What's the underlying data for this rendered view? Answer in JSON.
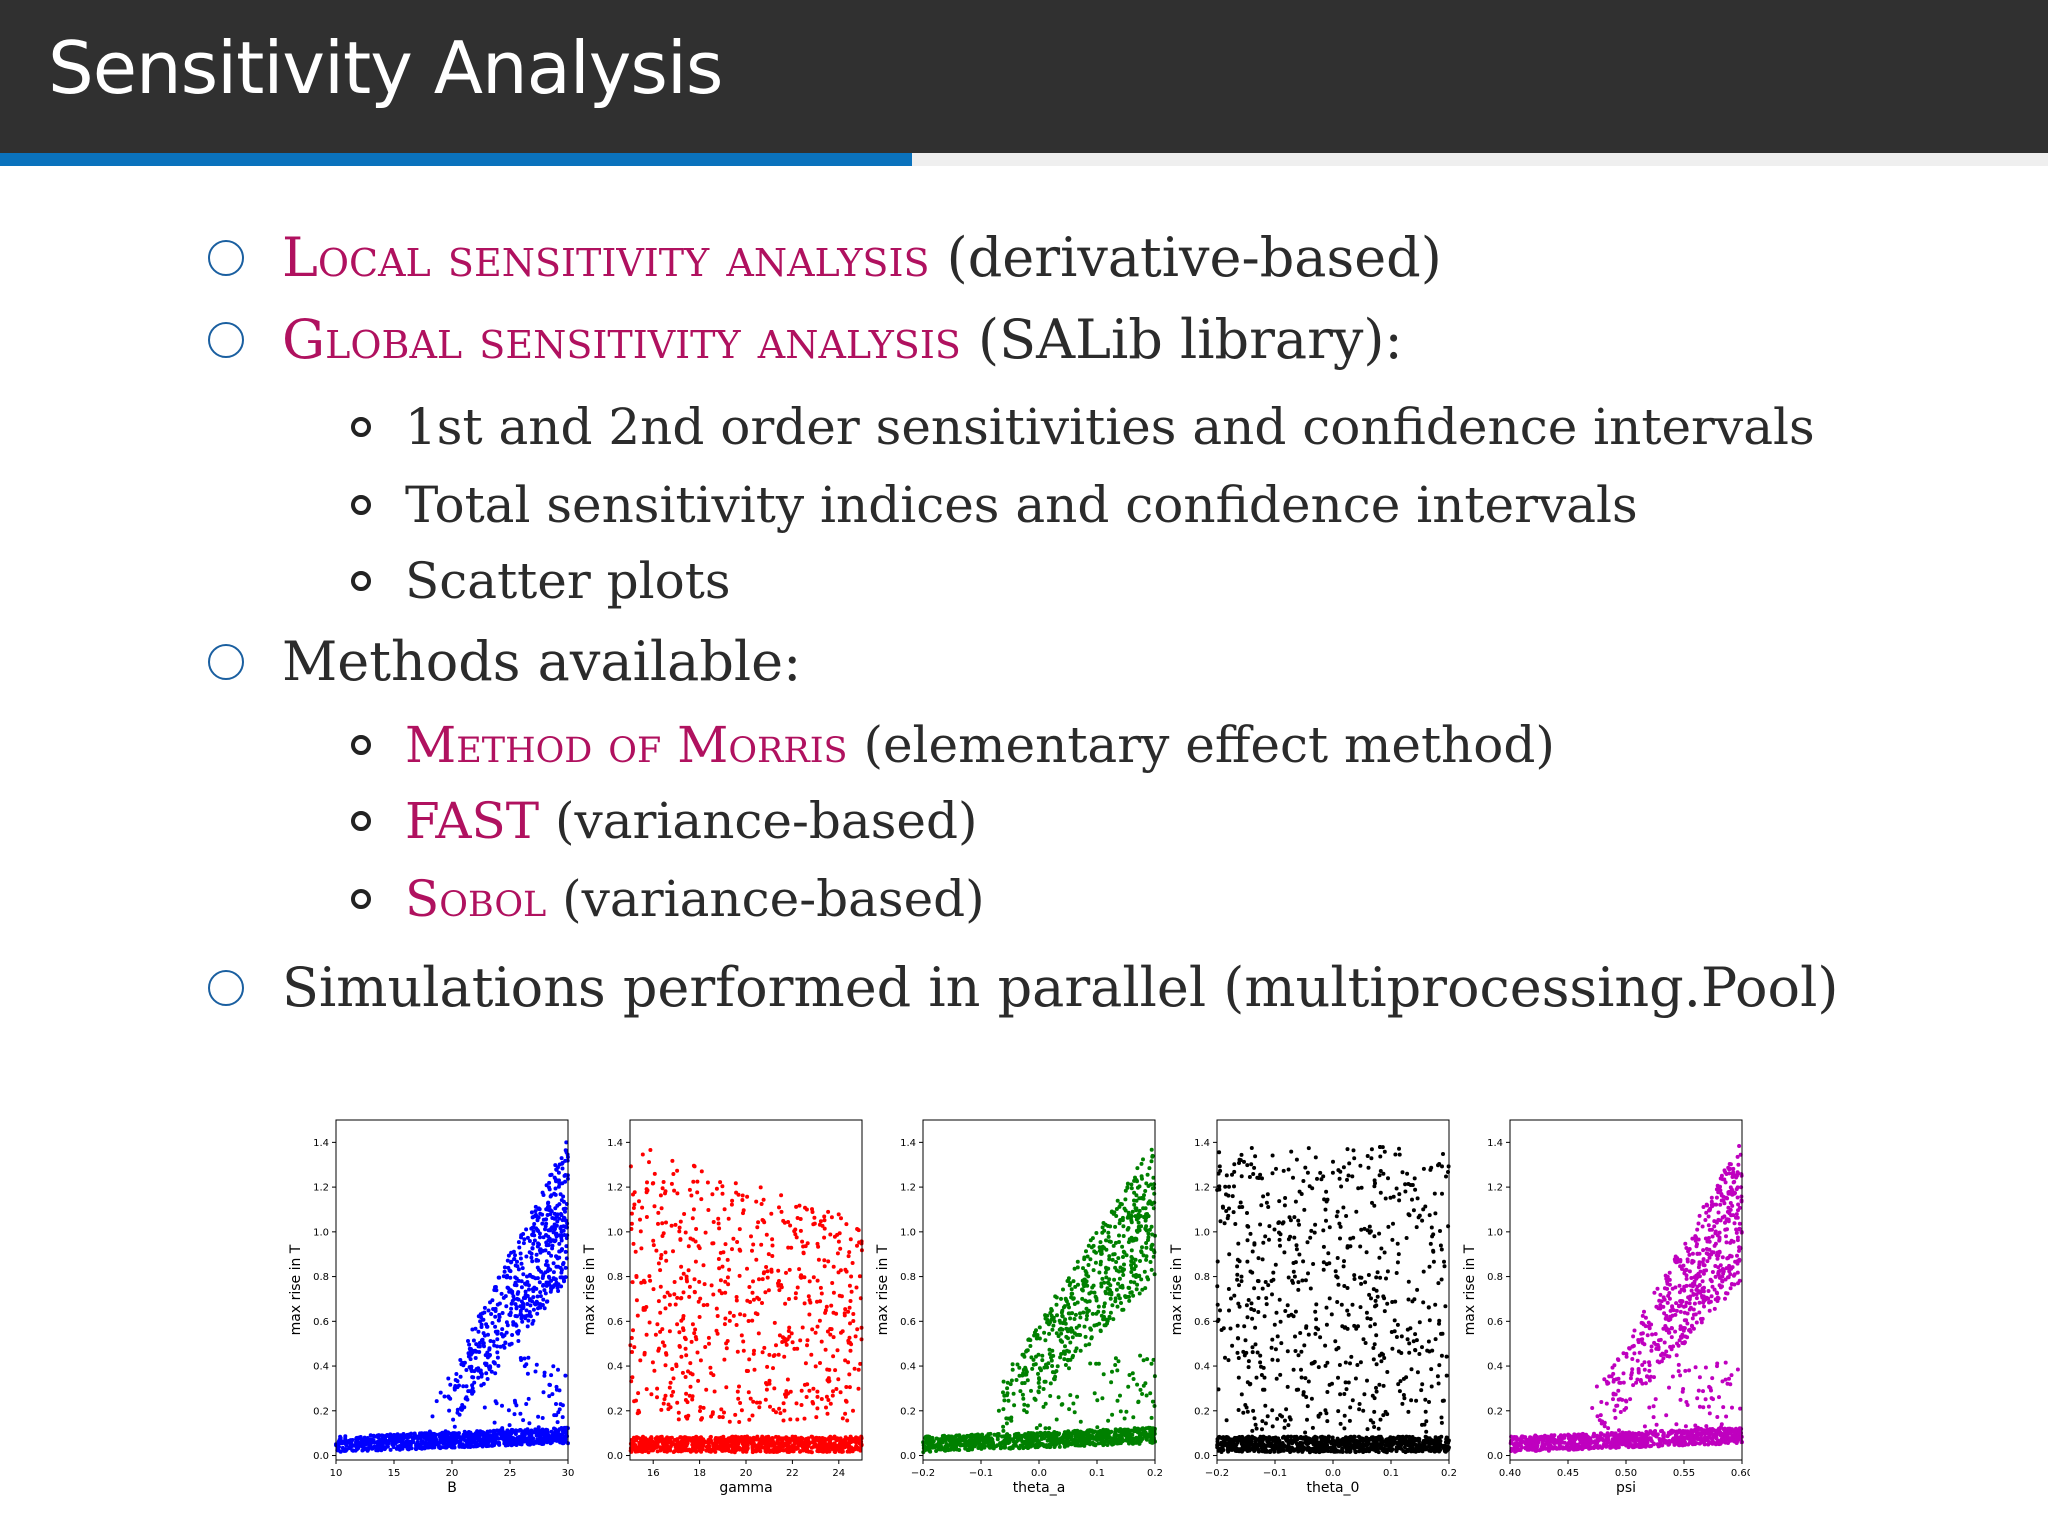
{
  "slide": {
    "title": "Sensitivity Analysis"
  },
  "bullets": [
    {
      "highlight": "Local sensitivity analysis",
      "rest": " (derivative-based)"
    },
    {
      "highlight": "Global sensitivity analysis",
      "rest": " (SALib library):"
    },
    {
      "text": "1st and 2nd order sensitivities and confidence intervals"
    },
    {
      "text": "Total sensitivity indices and confidence intervals"
    },
    {
      "text": "Scatter plots"
    },
    {
      "text": "Methods available:"
    },
    {
      "highlight": "Method of Morris",
      "rest": " (elementary effect method)"
    },
    {
      "highlight": "FAST",
      "rest": " (variance-based)"
    },
    {
      "highlight": "Sobol",
      "rest": " (variance-based)"
    },
    {
      "text": "Simulations performed in parallel (multiprocessing.Pool)"
    }
  ],
  "colors": {
    "accent": "#b0115f",
    "header": "#303030",
    "bar": "#0a72bd"
  },
  "chart_data": [
    {
      "type": "scatter",
      "xlabel": "B",
      "ylabel": "max rise in T",
      "color": "#0000ff",
      "xlim": [
        10,
        30
      ],
      "ylim": [
        -0.02,
        1.5
      ],
      "xticks": [
        10,
        15,
        20,
        25,
        30
      ],
      "xtick_labels": [
        "10",
        "15",
        "20",
        "25",
        "30"
      ],
      "yticks": [
        0,
        0.2,
        0.4,
        0.6,
        0.8,
        1.0,
        1.2,
        1.4
      ],
      "ytick_labels": [
        "0.0",
        "0.2",
        "0.4",
        "0.6",
        "0.8",
        "1.0",
        "1.2",
        "1.4"
      ],
      "pattern": "rise_after",
      "threshold": 18
    },
    {
      "type": "scatter",
      "xlabel": "gamma",
      "ylabel": "max rise in T",
      "color": "#ff0000",
      "xlim": [
        15,
        25
      ],
      "ylim": [
        -0.02,
        1.5
      ],
      "xticks": [
        16,
        18,
        20,
        22,
        24
      ],
      "xtick_labels": [
        "16",
        "18",
        "20",
        "22",
        "24"
      ],
      "yticks": [
        0,
        0.2,
        0.4,
        0.6,
        0.8,
        1.0,
        1.2,
        1.4
      ],
      "ytick_labels": [
        "0.0",
        "0.2",
        "0.4",
        "0.6",
        "0.8",
        "1.0",
        "1.2",
        "1.4"
      ],
      "pattern": "decline"
    },
    {
      "type": "scatter",
      "xlabel": "theta_a",
      "ylabel": "max rise in T",
      "color": "#008000",
      "xlim": [
        -0.2,
        0.2
      ],
      "ylim": [
        -0.02,
        1.5
      ],
      "xticks": [
        -0.2,
        -0.1,
        0.0,
        0.1,
        0.2
      ],
      "xtick_labels": [
        "−0.2",
        "−0.1",
        "0.0",
        "0.1",
        "0.2"
      ],
      "yticks": [
        0,
        0.2,
        0.4,
        0.6,
        0.8,
        1.0,
        1.2,
        1.4
      ],
      "ytick_labels": [
        "0.0",
        "0.2",
        "0.4",
        "0.6",
        "0.8",
        "1.0",
        "1.2",
        "1.4"
      ],
      "pattern": "rise_after",
      "threshold": -0.1
    },
    {
      "type": "scatter",
      "xlabel": "theta_0",
      "ylabel": "max rise in T",
      "color": "#000000",
      "xlim": [
        -0.2,
        0.2
      ],
      "ylim": [
        -0.02,
        1.5
      ],
      "xticks": [
        -0.2,
        -0.1,
        0.0,
        0.1,
        0.2
      ],
      "xtick_labels": [
        "−0.2",
        "−0.1",
        "0.0",
        "0.1",
        "0.2"
      ],
      "yticks": [
        0,
        0.2,
        0.4,
        0.6,
        0.8,
        1.0,
        1.2,
        1.4
      ],
      "ytick_labels": [
        "0.0",
        "0.2",
        "0.4",
        "0.6",
        "0.8",
        "1.0",
        "1.2",
        "1.4"
      ],
      "pattern": "uniform"
    },
    {
      "type": "scatter",
      "xlabel": "psi",
      "ylabel": "max rise in T",
      "color": "#bf00bf",
      "xlim": [
        0.4,
        0.6
      ],
      "ylim": [
        -0.02,
        1.5
      ],
      "xticks": [
        0.4,
        0.45,
        0.5,
        0.55,
        0.6
      ],
      "xtick_labels": [
        "0.40",
        "0.45",
        "0.50",
        "0.55",
        "0.60"
      ],
      "yticks": [
        0,
        0.2,
        0.4,
        0.6,
        0.8,
        1.0,
        1.2,
        1.4
      ],
      "ytick_labels": [
        "0.0",
        "0.2",
        "0.4",
        "0.6",
        "0.8",
        "1.0",
        "1.2",
        "1.4"
      ],
      "pattern": "rise_after",
      "threshold": 0.465
    }
  ]
}
